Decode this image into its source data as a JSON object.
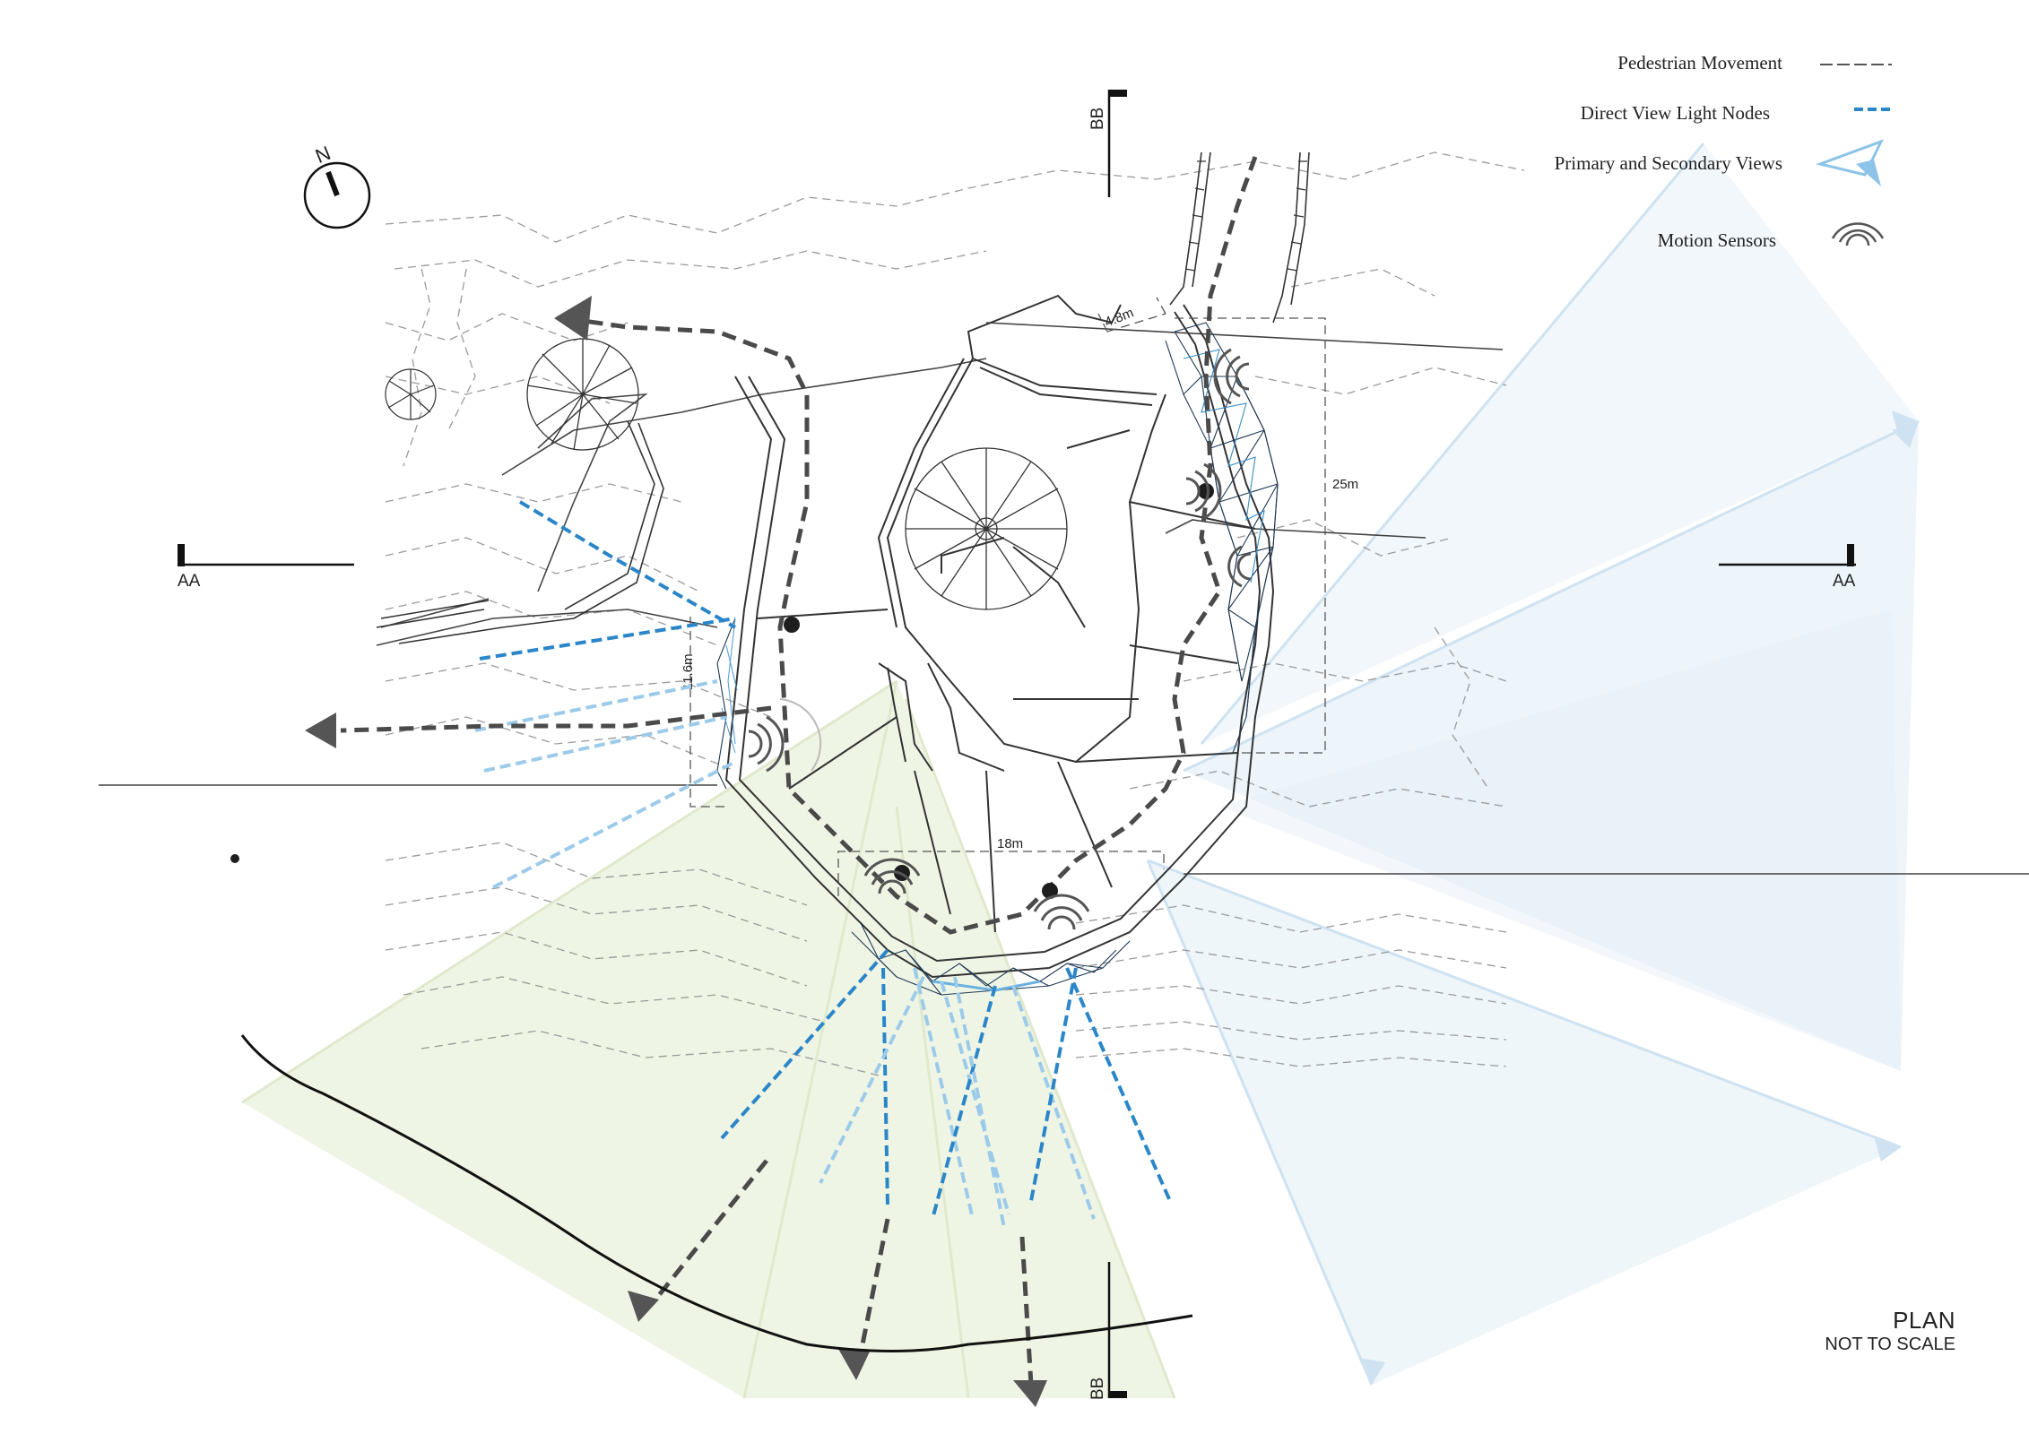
{
  "legend": {
    "items": [
      {
        "label": "Pedestrian Movement",
        "icon": "dashed-dark-line-icon"
      },
      {
        "label": "Direct View Light Nodes",
        "icon": "dashed-blue-line-icon"
      },
      {
        "label": "Primary and Secondary Views",
        "icon": "blue-view-arrow-icon"
      },
      {
        "label": "Motion Sensors",
        "icon": "motion-sensor-icon"
      }
    ]
  },
  "north": {
    "label": "N"
  },
  "sections": {
    "aa": "AA",
    "bb": "BB"
  },
  "dimensions": {
    "width_top": "4.8m",
    "height_right": "25m",
    "height_left": "11.6m",
    "width_bottom": "18m"
  },
  "title": {
    "main": "PLAN",
    "sub": "NOT TO SCALE"
  },
  "colors": {
    "pedestrian": "#4a4a4a",
    "light_nodes": "#2a86c8",
    "light_nodes_pale": "#9ccbea",
    "views_blue": "#d6e8f4",
    "views_green": "#e9f1dc",
    "linework": "#555555"
  }
}
